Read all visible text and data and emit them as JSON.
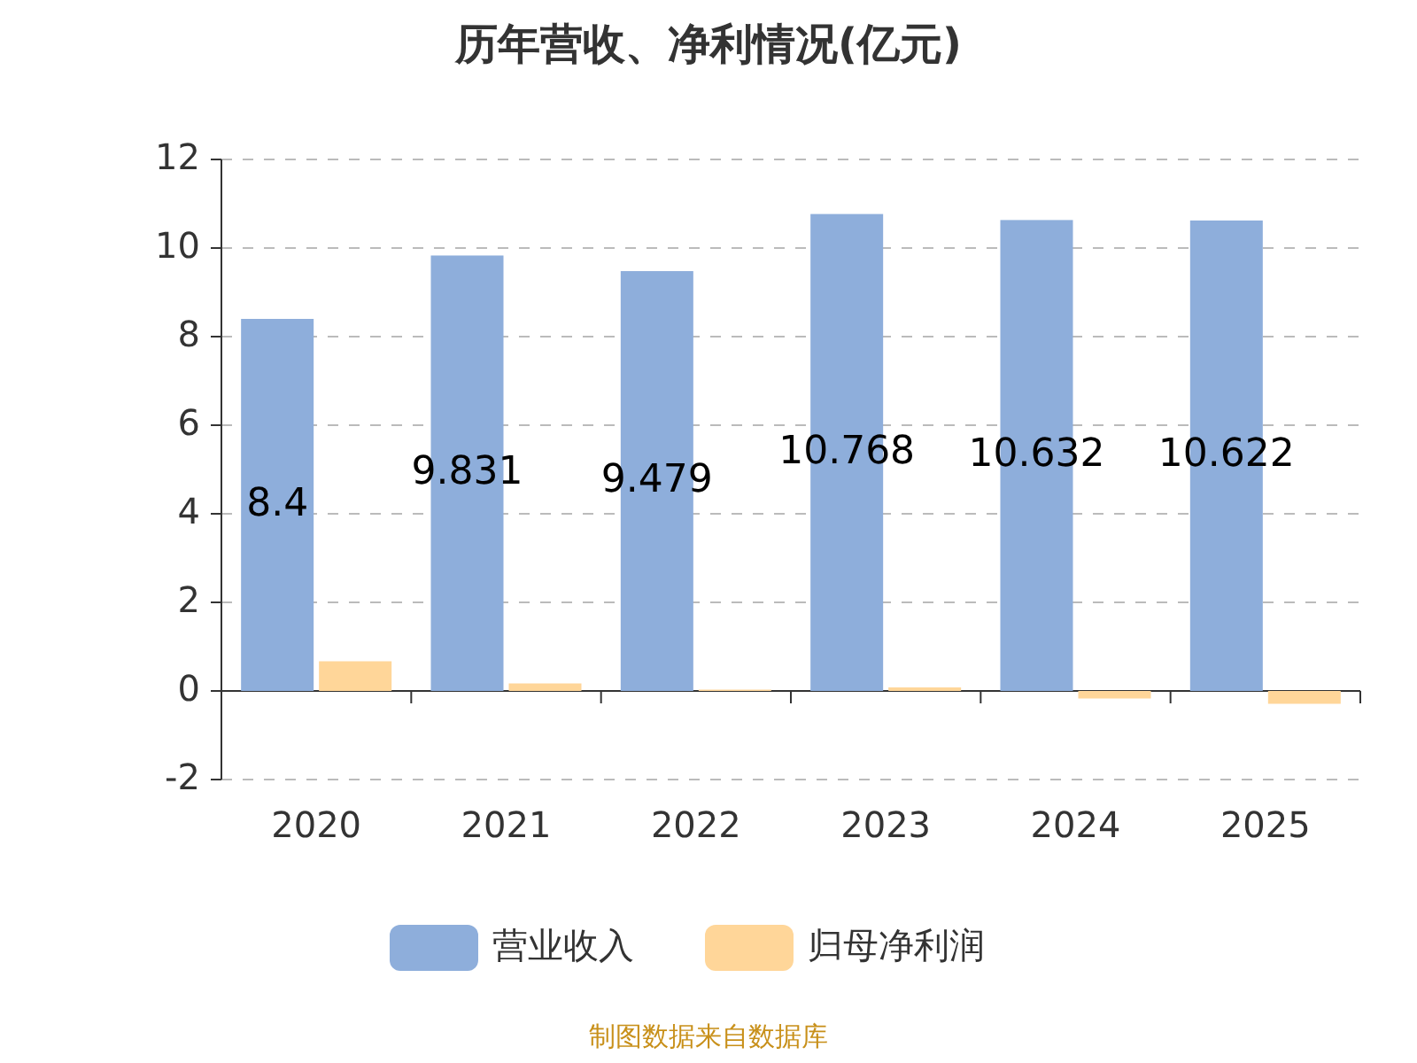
{
  "chart_data": {
    "type": "bar",
    "title": "历年营收、净利情况(亿元)",
    "categories": [
      "2020",
      "2021",
      "2022",
      "2023",
      "2024",
      "2025"
    ],
    "series": [
      {
        "name": "营业收入",
        "color": "#8eaedb",
        "values": [
          8.4,
          9.831,
          9.479,
          10.768,
          10.632,
          10.622
        ],
        "value_labels": [
          "8.4",
          "9.831",
          "9.479",
          "10.768",
          "10.632",
          "10.622"
        ]
      },
      {
        "name": "归母净利润",
        "color": "#ffd699",
        "values": [
          0.67,
          0.17,
          0.03,
          0.08,
          -0.17,
          -0.29
        ]
      }
    ],
    "ylim": [
      -2,
      12
    ],
    "yticks": [
      -2,
      0,
      2,
      4,
      6,
      8,
      10,
      12
    ],
    "grid": "y",
    "legend": "bottom",
    "annotations": [
      "制图数据来自数据库"
    ]
  }
}
